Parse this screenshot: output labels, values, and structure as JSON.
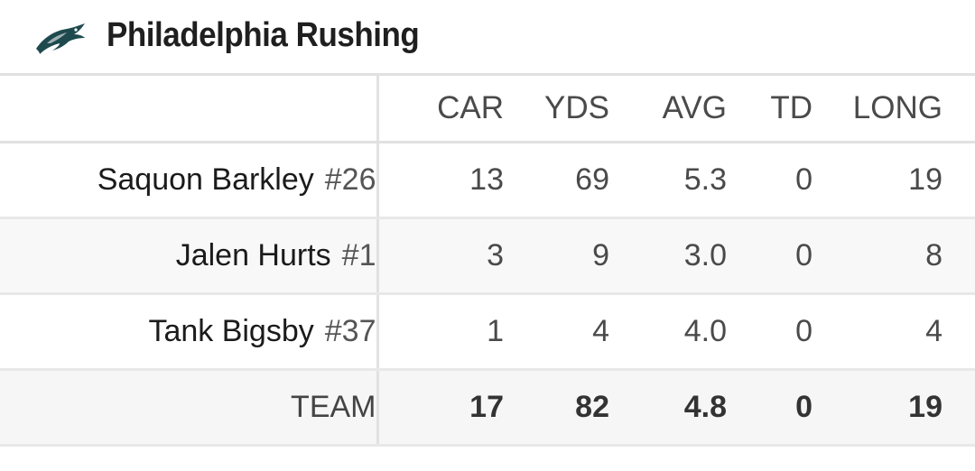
{
  "header": {
    "title": "Philadelphia Rushing",
    "logo_icon": "eagle-logo-icon",
    "logo_color": "#1e4a4e"
  },
  "columns": [
    "CAR",
    "YDS",
    "AVG",
    "TD",
    "LONG"
  ],
  "players": [
    {
      "name": "Saquon Barkley",
      "number": "#26",
      "car": "13",
      "yds": "69",
      "avg": "5.3",
      "td": "0",
      "long": "19"
    },
    {
      "name": "Jalen Hurts",
      "number": "#1",
      "car": "3",
      "yds": "9",
      "avg": "3.0",
      "td": "0",
      "long": "8"
    },
    {
      "name": "Tank Bigsby",
      "number": "#37",
      "car": "1",
      "yds": "4",
      "avg": "4.0",
      "td": "0",
      "long": "4"
    }
  ],
  "team": {
    "label": "TEAM",
    "car": "17",
    "yds": "82",
    "avg": "4.8",
    "td": "0",
    "long": "19"
  }
}
